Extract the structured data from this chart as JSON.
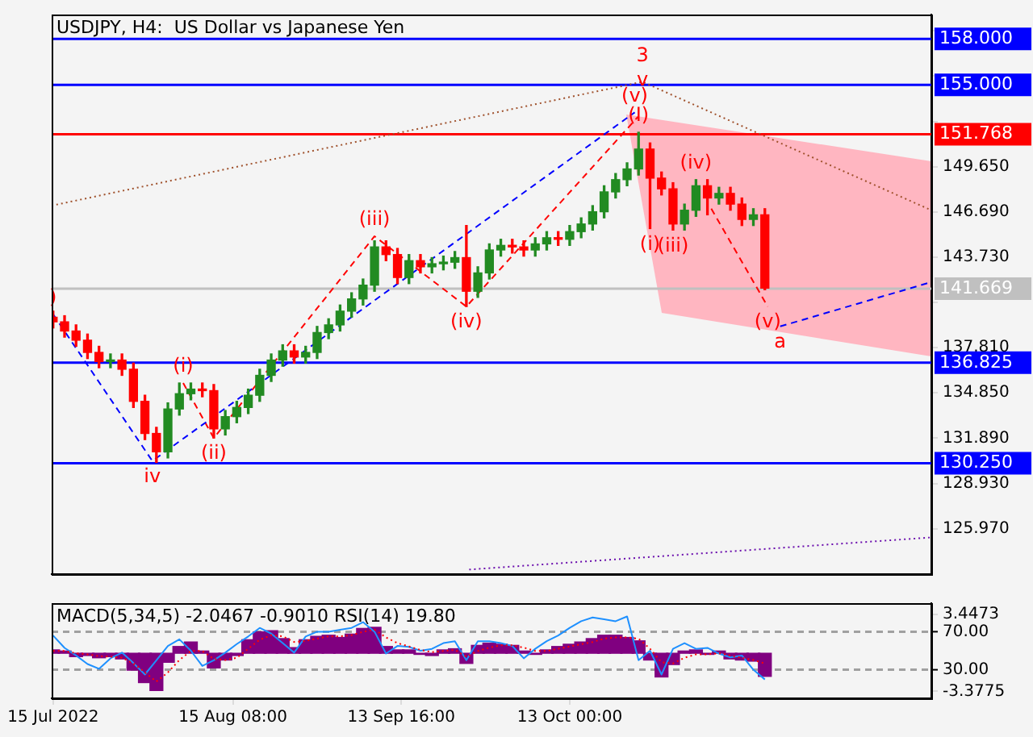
{
  "chart_data": [
    {
      "type": "candlestick",
      "title": "USDJPY, H4:  US Dollar vs Japanese Yen",
      "x": [
        "2022-07-15",
        "2022-07-17",
        "2022-07-19",
        "2022-07-21",
        "2022-07-23",
        "2022-07-25",
        "2022-07-27",
        "2022-07-29",
        "2022-07-31",
        "2022-08-02",
        "2022-08-04",
        "2022-08-06",
        "2022-08-08",
        "2022-08-10",
        "2022-08-12",
        "2022-08-14",
        "2022-08-16",
        "2022-08-18",
        "2022-08-20",
        "2022-08-22",
        "2022-08-24",
        "2022-08-26",
        "2022-08-28",
        "2022-08-30",
        "2022-09-01",
        "2022-09-03",
        "2022-09-05",
        "2022-09-07",
        "2022-09-09",
        "2022-09-11",
        "2022-09-13",
        "2022-09-15",
        "2022-09-17",
        "2022-09-19",
        "2022-09-21",
        "2022-09-23",
        "2022-09-25",
        "2022-09-27",
        "2022-09-29",
        "2022-10-01",
        "2022-10-03",
        "2022-10-05",
        "2022-10-07",
        "2022-10-09",
        "2022-10-11",
        "2022-10-13",
        "2022-10-15",
        "2022-10-17",
        "2022-10-19",
        "2022-10-21",
        "2022-10-23",
        "2022-10-25",
        "2022-10-27",
        "2022-10-29",
        "2022-10-31",
        "2022-11-02",
        "2022-11-04",
        "2022-11-06",
        "2022-11-08",
        "2022-11-10",
        "2022-11-12",
        "2022-11-14",
        "2022-11-16"
      ],
      "ohlc": [
        [
          139.8,
          140.2,
          139.1,
          139.5
        ],
        [
          139.5,
          139.9,
          138.5,
          138.9
        ],
        [
          138.9,
          139.3,
          137.9,
          138.3
        ],
        [
          138.3,
          138.7,
          137.1,
          137.5
        ],
        [
          137.5,
          137.9,
          136.5,
          136.9
        ],
        [
          136.9,
          137.4,
          136.5,
          137.0
        ],
        [
          137.0,
          137.4,
          136.0,
          136.4
        ],
        [
          136.4,
          136.8,
          133.9,
          134.3
        ],
        [
          134.3,
          134.7,
          131.8,
          132.2
        ],
        [
          132.2,
          132.6,
          130.3,
          131.0
        ],
        [
          131.0,
          134.2,
          130.6,
          133.8
        ],
        [
          133.8,
          135.5,
          133.4,
          134.8
        ],
        [
          134.8,
          135.5,
          134.4,
          135.1
        ],
        [
          135.1,
          135.5,
          134.6,
          135.0
        ],
        [
          135.0,
          135.4,
          131.9,
          132.5
        ],
        [
          132.5,
          133.7,
          132.1,
          133.3
        ],
        [
          133.3,
          134.3,
          132.9,
          133.9
        ],
        [
          133.9,
          135.1,
          133.5,
          134.7
        ],
        [
          134.7,
          136.4,
          134.3,
          136.0
        ],
        [
          136.0,
          137.4,
          135.6,
          137.0
        ],
        [
          137.0,
          138.0,
          136.6,
          137.6
        ],
        [
          137.6,
          138.0,
          136.8,
          137.2
        ],
        [
          137.2,
          137.9,
          136.8,
          137.5
        ],
        [
          137.5,
          139.2,
          137.1,
          138.8
        ],
        [
          138.8,
          139.7,
          138.4,
          139.3
        ],
        [
          139.3,
          140.6,
          138.9,
          140.2
        ],
        [
          140.2,
          141.4,
          139.8,
          141.0
        ],
        [
          141.0,
          142.3,
          140.6,
          141.9
        ],
        [
          141.9,
          144.8,
          141.5,
          144.4
        ],
        [
          144.4,
          144.8,
          143.5,
          143.9
        ],
        [
          143.9,
          144.3,
          142.0,
          142.4
        ],
        [
          142.4,
          143.9,
          142.0,
          143.5
        ],
        [
          143.5,
          143.9,
          142.7,
          143.1
        ],
        [
          143.1,
          143.7,
          142.7,
          143.3
        ],
        [
          143.3,
          143.8,
          142.9,
          143.4
        ],
        [
          143.4,
          144.1,
          143.0,
          143.7
        ],
        [
          143.7,
          145.8,
          140.5,
          141.5
        ],
        [
          141.5,
          143.1,
          141.1,
          142.7
        ],
        [
          142.7,
          144.6,
          142.3,
          144.2
        ],
        [
          144.2,
          144.9,
          143.8,
          144.5
        ],
        [
          144.5,
          144.9,
          144.0,
          144.4
        ],
        [
          144.4,
          144.8,
          143.8,
          144.2
        ],
        [
          144.2,
          145.0,
          143.8,
          144.6
        ],
        [
          144.6,
          145.4,
          144.2,
          145.0
        ],
        [
          145.0,
          145.4,
          144.5,
          144.9
        ],
        [
          144.9,
          145.8,
          144.5,
          145.4
        ],
        [
          145.4,
          146.3,
          145.0,
          145.9
        ],
        [
          145.9,
          147.1,
          145.5,
          146.7
        ],
        [
          146.7,
          148.4,
          146.3,
          148.0
        ],
        [
          148.0,
          149.2,
          147.6,
          148.8
        ],
        [
          148.8,
          149.9,
          148.4,
          149.5
        ],
        [
          149.5,
          151.9,
          149.1,
          150.8
        ],
        [
          150.8,
          151.2,
          145.6,
          148.9
        ],
        [
          148.9,
          149.3,
          147.8,
          148.2
        ],
        [
          148.2,
          148.6,
          145.5,
          145.9
        ],
        [
          145.9,
          147.2,
          145.5,
          146.8
        ],
        [
          146.8,
          148.8,
          146.4,
          148.4
        ],
        [
          148.4,
          148.8,
          146.5,
          147.6
        ],
        [
          147.6,
          148.3,
          147.2,
          147.9
        ],
        [
          147.9,
          148.3,
          146.8,
          147.2
        ],
        [
          147.2,
          147.6,
          145.8,
          146.2
        ],
        [
          146.2,
          146.9,
          145.8,
          146.5
        ],
        [
          146.5,
          146.9,
          141.6,
          141.7
        ]
      ],
      "colors": [
        "#ff0000",
        "#ff0000",
        "#ff0000",
        "#ff0000",
        "#ff0000",
        "#228b22",
        "#ff0000",
        "#ff0000",
        "#ff0000",
        "#ff0000",
        "#228b22",
        "#228b22",
        "#228b22",
        "#ff0000",
        "#ff0000",
        "#228b22",
        "#228b22",
        "#228b22",
        "#228b22",
        "#228b22",
        "#228b22",
        "#ff0000",
        "#228b22",
        "#228b22",
        "#228b22",
        "#228b22",
        "#228b22",
        "#228b22",
        "#228b22",
        "#ff0000",
        "#ff0000",
        "#228b22",
        "#ff0000",
        "#228b22",
        "#228b22",
        "#228b22",
        "#ff0000",
        "#228b22",
        "#228b22",
        "#228b22",
        "#ff0000",
        "#ff0000",
        "#228b22",
        "#228b22",
        "#ff0000",
        "#228b22",
        "#228b22",
        "#228b22",
        "#228b22",
        "#228b22",
        "#228b22",
        "#228b22",
        "#ff0000",
        "#ff0000",
        "#ff0000",
        "#228b22",
        "#228b22",
        "#ff0000",
        "#228b22",
        "#ff0000",
        "#ff0000",
        "#228b22",
        "#ff0000"
      ],
      "series": [
        {
          "type": "line",
          "color": "#0000ff",
          "line_style": "dashed",
          "x": [
            "2022-07-15",
            "2022-08-01T07:00",
            "2022-10-24T08:00"
          ],
          "values": [
            140.0,
            130.4,
            153.2
          ]
        },
        {
          "type": "line",
          "color": "#0000ff",
          "line_style": "dashed",
          "x": [
            "2022-11-18T16:00",
            "2022-12-15"
          ],
          "values": [
            139.2,
            142.1
          ]
        },
        {
          "type": "line",
          "color": "#ff0000",
          "line_style": "dashed",
          "x": [
            "2022-08-06T16:00",
            "2022-08-12",
            "2022-09-09",
            "2022-09-25",
            "2022-10-24T21:00"
          ],
          "values": [
            135.5,
            131.9,
            145.1,
            140.5,
            152.9
          ]
        },
        {
          "type": "line",
          "color": "#ff0000",
          "line_style": "dashed",
          "x": [
            "2022-11-06T16:00",
            "2022-11-16T12:00"
          ],
          "values": [
            146.9,
            140.5
          ]
        },
        {
          "type": "line",
          "color": "#a0522d",
          "line_style": "dotted",
          "x": [
            "2022-07-14T18:00",
            "2022-10-25T16:00",
            "2022-12-15"
          ],
          "values": [
            147.1,
            155.2,
            146.8
          ]
        },
        {
          "type": "line",
          "color": "#6a0dad",
          "line_style": "dotted",
          "x": [
            "2022-09-25T12:00",
            "2022-12-15"
          ],
          "values": [
            123.3,
            125.4
          ]
        }
      ],
      "xlim": [
        "2022-07-14T18:00",
        "2022-12-15"
      ],
      "ylim": [
        123.0,
        159.6
      ],
      "yticks": [
        {
          "value": 125.97,
          "label": "125.970"
        },
        {
          "value": 128.93,
          "label": "128.930"
        },
        {
          "value": 131.89,
          "label": "131.890"
        },
        {
          "value": 134.85,
          "label": "134.850"
        },
        {
          "value": 137.81,
          "label": "137.810"
        },
        {
          "value": 140.77,
          "label": null
        },
        {
          "value": 143.73,
          "label": "143.730"
        },
        {
          "value": 146.69,
          "label": "146.690"
        },
        {
          "value": 149.65,
          "label": "149.650"
        },
        {
          "value": 152.61,
          "label": null
        },
        {
          "value": 155.57,
          "label": null
        },
        {
          "value": 158.53,
          "label": null
        }
      ],
      "tick_labels": "y",
      "ref_lines": [
        {
          "axis": "y",
          "value": 158,
          "label": "158.000",
          "color": "#0000ff"
        },
        {
          "axis": "y",
          "value": 155,
          "label": "155.000",
          "color": "#0000ff"
        },
        {
          "axis": "y",
          "value": 151.768,
          "label": "151.768",
          "color": "#ff0000"
        },
        {
          "axis": "y",
          "value": 141.669,
          "label": "141.669",
          "color": "#c0c0c0"
        },
        {
          "axis": "y",
          "value": 136.825,
          "label": "136.825",
          "color": "#0000ff"
        },
        {
          "axis": "y",
          "value": 130.25,
          "label": "130.250",
          "color": "#0000ff"
        }
      ],
      "annotations": [
        {
          "text": ")",
          "x": "2022-07-15",
          "y": 140.0
        },
        {
          "text": "iv",
          "x": "2022-08-01T07:00",
          "y": 130.4
        },
        {
          "text": "(i)",
          "x": "2022-08-06T16:00",
          "y": 135.5
        },
        {
          "text": "(ii)",
          "x": "2022-08-12",
          "y": 131.9
        },
        {
          "text": "(iii)",
          "x": "2022-09-09",
          "y": 145.1
        },
        {
          "text": "(iv)",
          "x": "2022-09-25",
          "y": 140.5
        },
        {
          "text": "v",
          "x": "2022-10-25T16:00",
          "y": 155.2
        },
        {
          "text": "3",
          "x": "2022-10-25T16:00",
          "y": 155.2
        },
        {
          "text": "(v)",
          "x": "2022-10-24T08:00",
          "y": 153.2
        },
        {
          "text": "(I)",
          "x": "2022-10-25",
          "y": 151.9
        },
        {
          "text": "(i)",
          "x": "2022-10-27",
          "y": 145.6
        },
        {
          "text": "(iii)",
          "x": "2022-10-31",
          "y": 145.5
        },
        {
          "text": "(iv)",
          "x": "2022-11-04",
          "y": 148.8
        },
        {
          "text": "(v)",
          "x": "2022-11-16T12:00",
          "y": 140.5
        },
        {
          "text": "a",
          "x": "2022-11-18T16:00",
          "y": 139.2
        }
      ],
      "legend": false
    },
    {
      "type": "bar",
      "title": "MACD(5,34,5) -2.0467 -0.9010 RSI(14) 19.80",
      "x": [
        "2022-07-15",
        "2022-07-17",
        "2022-07-19",
        "2022-07-21",
        "2022-07-23",
        "2022-07-25",
        "2022-07-27",
        "2022-07-29",
        "2022-07-31",
        "2022-08-02",
        "2022-08-04",
        "2022-08-06",
        "2022-08-08",
        "2022-08-10",
        "2022-08-12",
        "2022-08-14",
        "2022-08-16",
        "2022-08-18",
        "2022-08-20",
        "2022-08-22",
        "2022-08-24",
        "2022-08-26",
        "2022-08-28",
        "2022-08-30",
        "2022-09-01",
        "2022-09-03",
        "2022-09-05",
        "2022-09-07",
        "2022-09-09",
        "2022-09-11",
        "2022-09-13",
        "2022-09-15",
        "2022-09-17",
        "2022-09-19",
        "2022-09-21",
        "2022-09-23",
        "2022-09-25",
        "2022-09-27",
        "2022-09-29",
        "2022-10-01",
        "2022-10-03",
        "2022-10-05",
        "2022-10-07",
        "2022-10-09",
        "2022-10-11",
        "2022-10-13",
        "2022-10-15",
        "2022-10-17",
        "2022-10-19",
        "2022-10-21",
        "2022-10-23",
        "2022-10-25",
        "2022-10-27",
        "2022-10-29",
        "2022-10-31",
        "2022-11-02",
        "2022-11-04",
        "2022-11-06",
        "2022-11-08",
        "2022-11-10",
        "2022-11-12",
        "2022-11-14",
        "2022-11-16"
      ],
      "series": [
        {
          "type": "bar",
          "color": "#800080",
          "values": [
            0.3,
            0.2,
            -0.3,
            -0.2,
            -0.4,
            -0.3,
            -0.5,
            -1.5,
            -2.6,
            -3.3,
            -0.8,
            0.6,
            1.0,
            0.2,
            -1.3,
            -0.6,
            -0.2,
            1.2,
            1.9,
            2.0,
            1.3,
            0.5,
            1.2,
            1.5,
            1.6,
            1.4,
            1.7,
            2.2,
            2.3,
            0.6,
            0.3,
            0.3,
            -0.1,
            -0.2,
            0.3,
            0.4,
            -0.9,
            0.7,
            0.9,
            0.8,
            0.7,
            0.2,
            -0.1,
            0.3,
            0.6,
            0.8,
            1.0,
            1.3,
            1.6,
            1.6,
            1.4,
            1.1,
            -0.6,
            -2.1,
            -1.0,
            0.2,
            0.3,
            -0.1,
            0.2,
            -0.5,
            -0.6,
            -0.7,
            -2.0467
          ]
        },
        {
          "type": "line",
          "color": "#ff0000",
          "line_style": "dotted",
          "values": [
            0.2,
            0.2,
            0.0,
            -0.1,
            -0.25,
            -0.3,
            -0.4,
            -0.9,
            -1.7,
            -2.5,
            -1.7,
            -0.6,
            0.2,
            0.2,
            -0.5,
            -0.6,
            -0.4,
            0.4,
            1.2,
            1.6,
            1.5,
            1.0,
            1.1,
            1.3,
            1.5,
            1.5,
            1.6,
            1.9,
            2.1,
            1.4,
            0.9,
            0.6,
            0.3,
            0.1,
            0.2,
            0.3,
            -0.3,
            0.2,
            0.5,
            0.7,
            0.7,
            0.5,
            0.2,
            0.2,
            0.4,
            0.6,
            0.8,
            1.0,
            1.3,
            1.4,
            1.4,
            1.3,
            0.4,
            -0.8,
            -0.9,
            -0.4,
            -0.1,
            -0.1,
            0.0,
            -0.2,
            -0.4,
            -0.6,
            -0.901
          ]
        },
        {
          "type": "line",
          "color": "#1e90ff",
          "axis": "y2",
          "values": [
            66,
            53,
            45,
            36,
            31,
            42,
            48,
            37,
            25,
            40,
            55,
            62,
            50,
            34,
            40,
            48,
            57,
            65,
            74,
            68,
            58,
            48,
            65,
            70,
            70,
            72,
            74,
            80,
            70,
            47,
            55,
            54,
            50,
            52,
            58,
            60,
            40,
            60,
            60,
            58,
            55,
            42,
            52,
            60,
            66,
            74,
            81,
            85,
            83,
            81,
            86,
            40,
            50,
            25,
            52,
            58,
            52,
            53,
            47,
            43,
            45,
            30,
            19.8
          ]
        }
      ],
      "xlim": [
        "2022-07-14T18:00",
        "2022-12-15"
      ],
      "xticks": [
        {
          "value": "2022-07-15T00:00",
          "label": "15 Jul 2022"
        },
        {
          "value": "2022-08-15T08:00",
          "label": "15 Aug 08:00"
        },
        {
          "value": "2022-09-13T16:00",
          "label": "13 Sep 16:00"
        },
        {
          "value": "2022-10-13T00:00",
          "label": "13 Oct 00:00"
        }
      ],
      "ylim": [
        -3.99,
        4.44
      ],
      "yticks": [
        -3.3775,
        3.4473
      ],
      "y2lim": [
        0,
        100
      ],
      "y2ticks": [
        {
          "value": 30,
          "label": "30.00"
        },
        {
          "value": 70,
          "label": "70.00"
        }
      ],
      "ref_lines": [
        {
          "axis": "y2",
          "value": 70,
          "color": "#a0a0a0",
          "line_style": "dashed"
        },
        {
          "axis": "y2",
          "value": 30,
          "color": "#a0a0a0",
          "line_style": "dashed"
        }
      ],
      "legend": false
    }
  ]
}
